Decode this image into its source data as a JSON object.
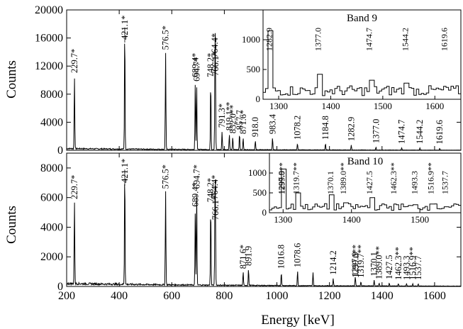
{
  "chart_data": [
    {
      "type": "line",
      "panel": "top",
      "xlabel": "",
      "ylabel": "Counts",
      "xlim": [
        200,
        1700
      ],
      "ylim": [
        0,
        20000
      ],
      "xticks": [
        "200",
        "400",
        "600",
        "800",
        "1000",
        "1200",
        "1400",
        "1600"
      ],
      "yticks": [
        "0",
        "4000",
        "8000",
        "12000",
        "16000",
        "20000"
      ],
      "peaks": [
        {
          "x": 229.7,
          "y": 10400,
          "label": "229.7*"
        },
        {
          "x": 421.1,
          "y": 17300,
          "label": "421.1*"
        },
        {
          "x": 576.5,
          "y": 13700,
          "label": "576.5*"
        },
        {
          "x": 689.4,
          "y": 9800,
          "label": "689.4*"
        },
        {
          "x": 694.7,
          "y": 9200,
          "label": "694.7*"
        },
        {
          "x": 748.2,
          "y": 9800,
          "label": "748.2*"
        },
        {
          "x": 764.4,
          "y": 12600,
          "label": "764.4*"
        },
        {
          "x": 766.1,
          "y": 10000,
          "label": "766.1*"
        },
        {
          "x": 791.3,
          "y": 2600,
          "label": "791.3*"
        },
        {
          "x": 819.1,
          "y": 2200,
          "label": "819.1**"
        },
        {
          "x": 832.0,
          "y": 1800,
          "label": "832.0**"
        },
        {
          "x": 857.7,
          "y": 2300,
          "label": "857.7"
        },
        {
          "x": 871.6,
          "y": 1700,
          "label": "871.6*"
        },
        {
          "x": 918.0,
          "y": 1300,
          "label": "918.0"
        },
        {
          "x": 983.4,
          "y": 1700,
          "label": "983.4"
        },
        {
          "x": 1078.2,
          "y": 900,
          "label": "1078.2"
        },
        {
          "x": 1184.8,
          "y": 900,
          "label": "1184.8"
        },
        {
          "x": 1282.9,
          "y": 700,
          "label": "1282.9"
        },
        {
          "x": 1377.0,
          "y": 400,
          "label": "1377.0"
        },
        {
          "x": 1474.7,
          "y": 300,
          "label": "1474.7"
        },
        {
          "x": 1544.2,
          "y": 300,
          "label": "1544.2"
        },
        {
          "x": 1619.6,
          "y": 250,
          "label": "1619.6"
        }
      ],
      "inset": {
        "title": "Band 9",
        "xlim": [
          1270,
          1650
        ],
        "ylim": [
          0,
          1500
        ],
        "xticks": [
          "1300",
          "1400",
          "1500",
          "1600"
        ],
        "yticks": [
          "0",
          "500",
          "1000"
        ],
        "peaks": [
          {
            "x": 1282.9,
            "y": 1150,
            "label": "1282.9"
          },
          {
            "x": 1377.0,
            "y": 420,
            "label": "1377.0"
          },
          {
            "x": 1474.7,
            "y": 320,
            "label": "1474.7"
          },
          {
            "x": 1544.2,
            "y": 270,
            "label": "1544.2"
          },
          {
            "x": 1619.6,
            "y": 200,
            "label": "1619.6"
          }
        ]
      }
    },
    {
      "type": "line",
      "panel": "bottom",
      "xlabel": "Energy [keV]",
      "ylabel": "Counts",
      "xlim": [
        200,
        1700
      ],
      "ylim": [
        0,
        9000
      ],
      "xticks": [
        "200",
        "400",
        "600",
        "800",
        "1000",
        "1200",
        "1400",
        "1600"
      ],
      "yticks": [
        "0",
        "2000",
        "4000",
        "6000",
        "8000"
      ],
      "peaks": [
        {
          "x": 229.7,
          "y": 5600,
          "label": "229.7*"
        },
        {
          "x": 421.1,
          "y": 7800,
          "label": "421.1*"
        },
        {
          "x": 576.5,
          "y": 6300,
          "label": "576.5*"
        },
        {
          "x": 689.4,
          "y": 5100,
          "label": "689.4*"
        },
        {
          "x": 694.7,
          "y": 6300,
          "label": "694.7*"
        },
        {
          "x": 748.2,
          "y": 5400,
          "label": "748.2*"
        },
        {
          "x": 764.4,
          "y": 5600,
          "label": "764.4*"
        },
        {
          "x": 766.1,
          "y": 4200,
          "label": "766.1*"
        },
        {
          "x": 871.6,
          "y": 900,
          "label": "871.6*"
        },
        {
          "x": 891.9,
          "y": 1100,
          "label": "891.9"
        },
        {
          "x": 1016.8,
          "y": 900,
          "label": "1016.8"
        },
        {
          "x": 1078.6,
          "y": 1000,
          "label": "1078.6"
        },
        {
          "x": 1137.4,
          "y": 900,
          "label": ""
        },
        {
          "x": 1214.2,
          "y": 500,
          "label": "1214.2"
        },
        {
          "x": 1297.9,
          "y": 400,
          "label": "1297.9"
        },
        {
          "x": 1299.0,
          "y": 300,
          "label": "1299.0**"
        },
        {
          "x": 1319.7,
          "y": 300,
          "label": "1319.7**"
        },
        {
          "x": 1370.1,
          "y": 400,
          "label": "1370.1"
        },
        {
          "x": 1389.0,
          "y": 200,
          "label": "1389.0**"
        },
        {
          "x": 1427.5,
          "y": 200,
          "label": "1427.5"
        },
        {
          "x": 1462.3,
          "y": 150,
          "label": "1462.3**"
        },
        {
          "x": 1493.3,
          "y": 150,
          "label": "1493.3"
        },
        {
          "x": 1516.9,
          "y": 150,
          "label": "1516.9**"
        },
        {
          "x": 1537.7,
          "y": 150,
          "label": "1537.7"
        }
      ],
      "inset": {
        "title": "Band 10",
        "xlim": [
          1280,
          1560
        ],
        "ylim": [
          0,
          1500
        ],
        "xticks": [
          "1300",
          "1400",
          "1500"
        ],
        "yticks": [
          "0",
          "500",
          "1000"
        ],
        "peaks": [
          {
            "x": 1297.9,
            "y": 1100,
            "label": "1297.9"
          },
          {
            "x": 1299.0,
            "y": 700,
            "label": "1299.0**"
          },
          {
            "x": 1319.7,
            "y": 500,
            "label": "1319.7**"
          },
          {
            "x": 1370.1,
            "y": 450,
            "label": "1370.1"
          },
          {
            "x": 1389.0,
            "y": 250,
            "label": "1389.0**"
          },
          {
            "x": 1427.5,
            "y": 380,
            "label": "1427.5"
          },
          {
            "x": 1462.3,
            "y": 200,
            "label": "1462.3**"
          },
          {
            "x": 1493.3,
            "y": 200,
            "label": "1493.3"
          },
          {
            "x": 1516.9,
            "y": 220,
            "label": "1516.9**"
          },
          {
            "x": 1537.7,
            "y": 150,
            "label": "1537.7"
          }
        ]
      }
    }
  ]
}
